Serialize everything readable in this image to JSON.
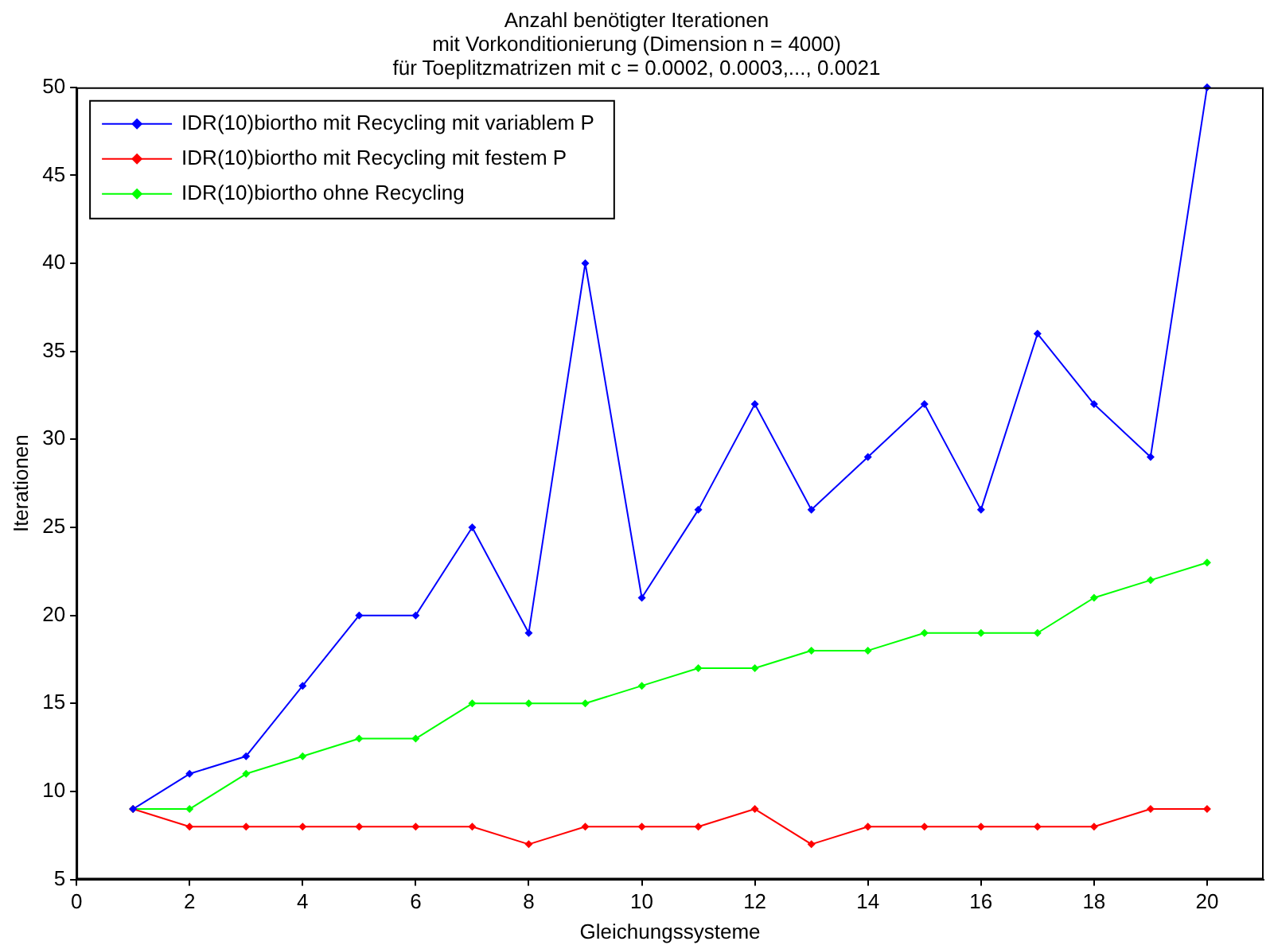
{
  "chart_data": {
    "type": "line",
    "title": "Anzahl benötigter Iterationen\nmit Vorkonditionierung (Dimension n = 4000)\nfür Toeplitzmatrizen mit c = 0.0002, 0.0003,..., 0.0021",
    "xlabel": "Gleichungssysteme",
    "ylabel": "Iterationen",
    "x": [
      1,
      2,
      3,
      4,
      5,
      6,
      7,
      8,
      9,
      10,
      11,
      12,
      13,
      14,
      15,
      16,
      17,
      18,
      19,
      20
    ],
    "series": [
      {
        "name": "IDR(10)biortho mit Recycling mit variablem P",
        "color": "#0000ff",
        "values": [
          9,
          11,
          12,
          16,
          20,
          20,
          25,
          19,
          40,
          21,
          26,
          32,
          26,
          29,
          32,
          26,
          36,
          32,
          29,
          50
        ]
      },
      {
        "name": "IDR(10)biortho mit Recycling mit festem P",
        "color": "#ff0000",
        "values": [
          9,
          8,
          8,
          8,
          8,
          8,
          8,
          7,
          8,
          8,
          8,
          9,
          7,
          8,
          8,
          8,
          8,
          8,
          9,
          9
        ]
      },
      {
        "name": "IDR(10)biortho ohne Recycling",
        "color": "#00ff00",
        "values": [
          9,
          9,
          11,
          12,
          13,
          13,
          15,
          15,
          15,
          16,
          17,
          17,
          18,
          18,
          19,
          19,
          19,
          21,
          22,
          23
        ]
      }
    ],
    "xlim": [
      0,
      21
    ],
    "xticks": [
      0,
      2,
      4,
      6,
      8,
      10,
      12,
      14,
      16,
      18,
      20
    ],
    "ylim": [
      5,
      50
    ],
    "yticks": [
      5,
      10,
      15,
      20,
      25,
      30,
      35,
      40,
      45,
      50
    ],
    "grid": false,
    "legend": "top left",
    "marker": "diamond",
    "line_style": "solid"
  }
}
